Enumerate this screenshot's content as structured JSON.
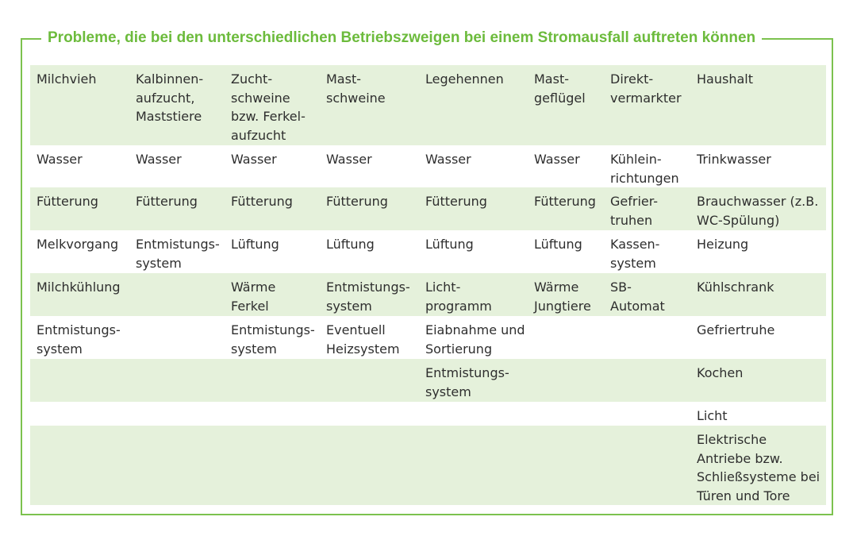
{
  "title": "Probleme, die bei den unterschiedlichen Betriebszweigen bei einem Stromausfall auftreten können",
  "colors": {
    "accent": "#6cbb3c",
    "frame": "#7cc24e",
    "row_shade": "#e5f1db"
  },
  "table": {
    "rows": [
      [
        "Milchvieh",
        "Kalbinnen-\naufzucht,\nMaststiere",
        "Zucht-\nschweine\nbzw. Ferkel-\naufzucht",
        "Mast-\nschweine",
        "Legehennen",
        "Mast-\ngeflügel",
        "Direkt-\nvermarkter",
        "Haushalt"
      ],
      [
        "Wasser",
        "Wasser",
        "Wasser",
        "Wasser",
        "Wasser",
        "Wasser",
        "Kühlein-\nrichtungen",
        "Trinkwasser"
      ],
      [
        "Fütterung",
        "Fütterung",
        "Fütterung",
        "Fütterung",
        "Fütterung",
        "Fütterung",
        "Gefrier-\ntruhen",
        "Brauchwasser (z.B.\nWC-Spülung)"
      ],
      [
        "Melkvorgang",
        "Entmistungs-\nsystem",
        "Lüftung",
        "Lüftung",
        "Lüftung",
        "Lüftung",
        "Kassen-\nsystem",
        "Heizung"
      ],
      [
        "Milchkühlung",
        "",
        "Wärme\nFerkel",
        "Entmistungs-\nsystem",
        "Licht-\nprogramm",
        "Wärme\nJungtiere",
        "SB-\nAutomat",
        "Kühlschrank"
      ],
      [
        "Entmistungs-\nsystem",
        "",
        "Entmistungs-\nsystem",
        "Eventuell\nHeizsystem",
        "Eiabnahme und\nSortierung",
        "",
        "",
        "Gefriertruhe"
      ],
      [
        "",
        "",
        "",
        "",
        "Entmistungs-\nsystem",
        "",
        "",
        "Kochen"
      ],
      [
        "",
        "",
        "",
        "",
        "",
        "",
        "",
        "Licht"
      ],
      [
        "",
        "",
        "",
        "",
        "",
        "",
        "",
        "Elektrische\nAntriebe bzw.\nSchließsysteme bei\nTüren und Tore"
      ]
    ]
  }
}
